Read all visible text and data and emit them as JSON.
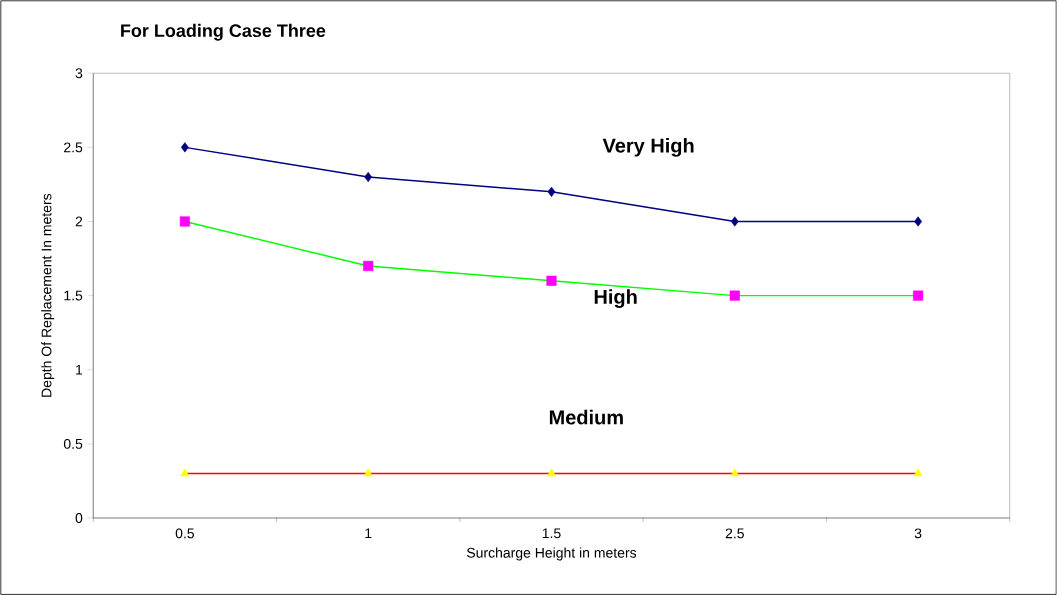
{
  "chart_data": {
    "type": "line",
    "title": "For Loading Case Three",
    "xlabel": "Surcharge Height in meters",
    "ylabel": "Depth Of Replacement In meters",
    "categories": [
      "0.5",
      "1",
      "1.5",
      "2.5",
      "3"
    ],
    "series": [
      {
        "name": "Very High",
        "color": "#000080",
        "colors": [
          "#000080",
          "#000080",
          "#000080",
          "#000080",
          "#000080"
        ],
        "marker": "diamond",
        "values": [
          2.5,
          2.3,
          2.2,
          2.0,
          2.0
        ]
      },
      {
        "name": "High",
        "color": "#00ff00",
        "colors": [
          "#ff00ff",
          "#ff00ff",
          "#ff00ff",
          "#ff00ff",
          "#ff00ff"
        ],
        "marker": "square",
        "values": [
          2.0,
          1.7,
          1.6,
          1.5,
          1.5
        ]
      },
      {
        "name": "Medium",
        "color": "#ff0000",
        "colors": [
          "#ffff00",
          "#ffff00",
          "#ffff00",
          "#ffff00",
          "#ffff00"
        ],
        "marker": "triangle",
        "values": [
          0.3,
          0.3,
          0.3,
          0.3,
          0.3
        ]
      }
    ],
    "ylim": [
      0,
      3
    ],
    "yticks": [
      0,
      0.5,
      1,
      1.5,
      2,
      2.5,
      3
    ],
    "line_style": "solid"
  }
}
